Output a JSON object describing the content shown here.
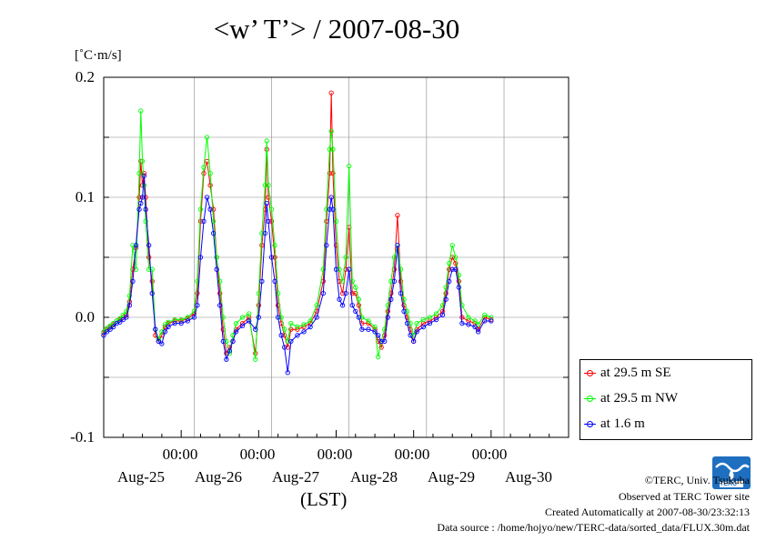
{
  "title": "<w’ T’> / 2007-08-30",
  "chart_data": {
    "type": "line",
    "title": "<w’ T’> / 2007-08-30",
    "ylabel": "[˚C·m/s]",
    "xlabel": "(LST)",
    "ylim": [
      -0.1,
      0.2
    ],
    "xlim": [
      0,
      144
    ],
    "y_ticks": [
      "0.2",
      "0.1",
      "0.0",
      "-0.1"
    ],
    "x_time_ticks": [
      "00:00",
      "00:00",
      "00:00",
      "00:00",
      "00:00"
    ],
    "x_day_labels": [
      "Aug-25",
      "Aug-26",
      "Aug-27",
      "Aug-28",
      "Aug-29",
      "Aug-30"
    ],
    "grid": true,
    "legend_position": "right",
    "x_unit": "hours since Aug-25 00:00 (LST)",
    "series": [
      {
        "name": "at 29.5 m SE",
        "color": "#ff0000",
        "points": [
          [
            0,
            -0.013
          ],
          [
            1,
            -0.01
          ],
          [
            2,
            -0.008
          ],
          [
            3,
            -0.006
          ],
          [
            4,
            -0.003
          ],
          [
            5,
            -0.002
          ],
          [
            6,
            0.0
          ],
          [
            7,
            0.002
          ],
          [
            8,
            0.013
          ],
          [
            9,
            0.04
          ],
          [
            10,
            0.058
          ],
          [
            11,
            0.1
          ],
          [
            11.5,
            0.13
          ],
          [
            12,
            0.11
          ],
          [
            12.5,
            0.12
          ],
          [
            13,
            0.1
          ],
          [
            14,
            0.05
          ],
          [
            15,
            0.03
          ],
          [
            16,
            -0.015
          ],
          [
            17,
            -0.02
          ],
          [
            18,
            -0.015
          ],
          [
            19,
            -0.008
          ],
          [
            20,
            -0.005
          ],
          [
            22,
            -0.003
          ],
          [
            24,
            -0.003
          ],
          [
            26,
            -0.001
          ],
          [
            28,
            0.003
          ],
          [
            29,
            0.02
          ],
          [
            30,
            0.08
          ],
          [
            31,
            0.12
          ],
          [
            32,
            0.13
          ],
          [
            33,
            0.11
          ],
          [
            34,
            0.09
          ],
          [
            35,
            0.05
          ],
          [
            36,
            0.02
          ],
          [
            37,
            -0.01
          ],
          [
            38,
            -0.03
          ],
          [
            39,
            -0.025
          ],
          [
            40,
            -0.02
          ],
          [
            41,
            -0.01
          ],
          [
            43,
            -0.005
          ],
          [
            45,
            0.0
          ],
          [
            47,
            -0.03
          ],
          [
            48,
            0.01
          ],
          [
            49,
            0.06
          ],
          [
            50,
            0.09
          ],
          [
            50.5,
            0.14
          ],
          [
            51,
            0.1
          ],
          [
            52,
            0.08
          ],
          [
            53,
            0.05
          ],
          [
            54,
            0.01
          ],
          [
            55,
            -0.005
          ],
          [
            56,
            -0.015
          ],
          [
            57,
            -0.025
          ],
          [
            58,
            -0.01
          ],
          [
            60,
            -0.01
          ],
          [
            62,
            -0.008
          ],
          [
            64,
            -0.005
          ],
          [
            66,
            0.005
          ],
          [
            68,
            0.03
          ],
          [
            69,
            0.08
          ],
          [
            70,
            0.12
          ],
          [
            70.5,
            0.187
          ],
          [
            71,
            0.12
          ],
          [
            72,
            0.06
          ],
          [
            73,
            0.03
          ],
          [
            74,
            0.02
          ],
          [
            75,
            0.04
          ],
          [
            76,
            0.075
          ],
          [
            77,
            0.02
          ],
          [
            78,
            0.02
          ],
          [
            79,
            0.01
          ],
          [
            80,
            -0.005
          ],
          [
            82,
            -0.005
          ],
          [
            84,
            -0.01
          ],
          [
            85,
            -0.02
          ],
          [
            86,
            -0.025
          ],
          [
            87,
            -0.015
          ],
          [
            88,
            0.005
          ],
          [
            89,
            0.02
          ],
          [
            90,
            0.04
          ],
          [
            91,
            0.085
          ],
          [
            92,
            0.03
          ],
          [
            93,
            0.01
          ],
          [
            94,
            0.0
          ],
          [
            95,
            -0.01
          ],
          [
            96,
            -0.02
          ],
          [
            97,
            -0.01
          ],
          [
            99,
            -0.005
          ],
          [
            101,
            -0.003
          ],
          [
            103,
            0.0
          ],
          [
            105,
            0.005
          ],
          [
            106,
            0.02
          ],
          [
            107,
            0.04
          ],
          [
            108,
            0.05
          ],
          [
            109,
            0.045
          ],
          [
            110,
            0.03
          ],
          [
            111,
            0.0
          ],
          [
            113,
            -0.003
          ],
          [
            115,
            -0.005
          ],
          [
            116,
            -0.01
          ],
          [
            118,
            0.0
          ],
          [
            120,
            -0.002
          ]
        ]
      },
      {
        "name": "at 29.5 m NW",
        "color": "#00ff00",
        "points": [
          [
            0,
            -0.012
          ],
          [
            1,
            -0.009
          ],
          [
            2,
            -0.007
          ],
          [
            3,
            -0.005
          ],
          [
            4,
            -0.003
          ],
          [
            5,
            -0.001
          ],
          [
            6,
            0.002
          ],
          [
            7,
            0.005
          ],
          [
            8,
            0.018
          ],
          [
            9,
            0.06
          ],
          [
            10,
            0.04
          ],
          [
            11,
            0.12
          ],
          [
            11.5,
            0.172
          ],
          [
            12,
            0.13
          ],
          [
            12.5,
            0.11
          ],
          [
            13,
            0.08
          ],
          [
            14,
            0.04
          ],
          [
            15,
            0.04
          ],
          [
            16,
            -0.01
          ],
          [
            17,
            -0.018
          ],
          [
            18,
            -0.012
          ],
          [
            19,
            -0.006
          ],
          [
            20,
            -0.004
          ],
          [
            22,
            -0.002
          ],
          [
            24,
            -0.002
          ],
          [
            26,
            0.0
          ],
          [
            28,
            0.005
          ],
          [
            29,
            0.03
          ],
          [
            30,
            0.09
          ],
          [
            31,
            0.125
          ],
          [
            32,
            0.15
          ],
          [
            33,
            0.12
          ],
          [
            34,
            0.08
          ],
          [
            35,
            0.05
          ],
          [
            36,
            0.03
          ],
          [
            37,
            0.0
          ],
          [
            38,
            -0.02
          ],
          [
            39,
            -0.03
          ],
          [
            40,
            -0.015
          ],
          [
            41,
            -0.005
          ],
          [
            43,
            0.0
          ],
          [
            45,
            0.003
          ],
          [
            47,
            -0.035
          ],
          [
            48,
            0.02
          ],
          [
            49,
            0.07
          ],
          [
            50,
            0.11
          ],
          [
            50.5,
            0.147
          ],
          [
            51,
            0.11
          ],
          [
            52,
            0.09
          ],
          [
            53,
            0.06
          ],
          [
            54,
            0.02
          ],
          [
            55,
            0.0
          ],
          [
            56,
            -0.01
          ],
          [
            57,
            -0.02
          ],
          [
            58,
            -0.005
          ],
          [
            60,
            -0.008
          ],
          [
            62,
            -0.006
          ],
          [
            64,
            -0.003
          ],
          [
            66,
            0.01
          ],
          [
            68,
            0.04
          ],
          [
            69,
            0.09
          ],
          [
            70,
            0.14
          ],
          [
            70.5,
            0.155
          ],
          [
            71,
            0.14
          ],
          [
            72,
            0.08
          ],
          [
            73,
            0.04
          ],
          [
            74,
            0.03
          ],
          [
            75,
            0.05
          ],
          [
            76,
            0.126
          ],
          [
            77,
            0.03
          ],
          [
            78,
            0.025
          ],
          [
            79,
            0.015
          ],
          [
            80,
            0.0
          ],
          [
            82,
            -0.003
          ],
          [
            84,
            -0.008
          ],
          [
            85,
            -0.033
          ],
          [
            86,
            -0.02
          ],
          [
            87,
            -0.01
          ],
          [
            88,
            0.01
          ],
          [
            89,
            0.03
          ],
          [
            90,
            0.05
          ],
          [
            91,
            0.06
          ],
          [
            92,
            0.04
          ],
          [
            93,
            0.015
          ],
          [
            94,
            0.005
          ],
          [
            95,
            -0.005
          ],
          [
            96,
            -0.015
          ],
          [
            97,
            -0.005
          ],
          [
            99,
            -0.002
          ],
          [
            101,
            0.0
          ],
          [
            103,
            0.003
          ],
          [
            105,
            0.01
          ],
          [
            106,
            0.025
          ],
          [
            107,
            0.045
          ],
          [
            108,
            0.06
          ],
          [
            109,
            0.05
          ],
          [
            110,
            0.035
          ],
          [
            111,
            0.01
          ],
          [
            113,
            0.0
          ],
          [
            115,
            -0.003
          ],
          [
            116,
            -0.006
          ],
          [
            118,
            0.002
          ],
          [
            120,
            0.0
          ]
        ]
      },
      {
        "name": "at 1.6 m",
        "color": "#0000ff",
        "points": [
          [
            0,
            -0.015
          ],
          [
            1,
            -0.012
          ],
          [
            2,
            -0.01
          ],
          [
            3,
            -0.008
          ],
          [
            4,
            -0.005
          ],
          [
            5,
            -0.004
          ],
          [
            6,
            -0.002
          ],
          [
            7,
            0.0
          ],
          [
            8,
            0.01
          ],
          [
            9,
            0.03
          ],
          [
            10,
            0.06
          ],
          [
            11,
            0.09
          ],
          [
            11.5,
            0.095
          ],
          [
            12,
            0.1
          ],
          [
            12.5,
            0.118
          ],
          [
            13,
            0.09
          ],
          [
            14,
            0.06
          ],
          [
            15,
            0.02
          ],
          [
            16,
            -0.01
          ],
          [
            17,
            -0.02
          ],
          [
            18,
            -0.022
          ],
          [
            19,
            -0.012
          ],
          [
            20,
            -0.008
          ],
          [
            22,
            -0.005
          ],
          [
            24,
            -0.005
          ],
          [
            26,
            -0.003
          ],
          [
            28,
            0.0
          ],
          [
            29,
            0.01
          ],
          [
            30,
            0.05
          ],
          [
            31,
            0.08
          ],
          [
            32,
            0.1
          ],
          [
            33,
            0.09
          ],
          [
            34,
            0.07
          ],
          [
            35,
            0.04
          ],
          [
            36,
            0.01
          ],
          [
            37,
            -0.02
          ],
          [
            38,
            -0.035
          ],
          [
            39,
            -0.028
          ],
          [
            40,
            -0.02
          ],
          [
            41,
            -0.012
          ],
          [
            43,
            -0.007
          ],
          [
            45,
            -0.003
          ],
          [
            47,
            -0.01
          ],
          [
            48,
            0.0
          ],
          [
            49,
            0.03
          ],
          [
            50,
            0.07
          ],
          [
            50.5,
            0.095
          ],
          [
            51,
            0.08
          ],
          [
            52,
            0.05
          ],
          [
            53,
            0.03
          ],
          [
            54,
            0.0
          ],
          [
            55,
            -0.015
          ],
          [
            56,
            -0.025
          ],
          [
            57,
            -0.046
          ],
          [
            58,
            -0.02
          ],
          [
            60,
            -0.015
          ],
          [
            62,
            -0.012
          ],
          [
            64,
            -0.008
          ],
          [
            66,
            0.0
          ],
          [
            68,
            0.02
          ],
          [
            69,
            0.06
          ],
          [
            70,
            0.09
          ],
          [
            70.5,
            0.1
          ],
          [
            71,
            0.09
          ],
          [
            72,
            0.04
          ],
          [
            73,
            0.015
          ],
          [
            74,
            0.01
          ],
          [
            75,
            0.02
          ],
          [
            76,
            0.04
          ],
          [
            77,
            0.01
          ],
          [
            78,
            0.005
          ],
          [
            79,
            0.0
          ],
          [
            80,
            -0.01
          ],
          [
            82,
            -0.01
          ],
          [
            84,
            -0.012
          ],
          [
            85,
            -0.015
          ],
          [
            86,
            -0.02
          ],
          [
            87,
            -0.02
          ],
          [
            88,
            0.0
          ],
          [
            89,
            0.015
          ],
          [
            90,
            0.03
          ],
          [
            91,
            0.06
          ],
          [
            92,
            0.02
          ],
          [
            93,
            0.005
          ],
          [
            94,
            -0.005
          ],
          [
            95,
            -0.015
          ],
          [
            96,
            -0.02
          ],
          [
            97,
            -0.012
          ],
          [
            99,
            -0.008
          ],
          [
            101,
            -0.005
          ],
          [
            103,
            -0.002
          ],
          [
            105,
            0.002
          ],
          [
            106,
            0.015
          ],
          [
            107,
            0.03
          ],
          [
            108,
            0.04
          ],
          [
            109,
            0.04
          ],
          [
            110,
            0.025
          ],
          [
            111,
            -0.005
          ],
          [
            113,
            -0.006
          ],
          [
            115,
            -0.008
          ],
          [
            116,
            -0.012
          ],
          [
            118,
            -0.003
          ],
          [
            120,
            -0.003
          ]
        ]
      }
    ]
  },
  "footer": {
    "copyright": "©TERC, Univ. Tsukuba",
    "site": "Observed at TERC Tower site",
    "created": "Created Automatically at 2007-08-30/23:32:13",
    "source": "Data source : /home/hojyo/new/TERC-data/sorted_data/FLUX.30m.dat",
    "logo_text": "TERC"
  }
}
